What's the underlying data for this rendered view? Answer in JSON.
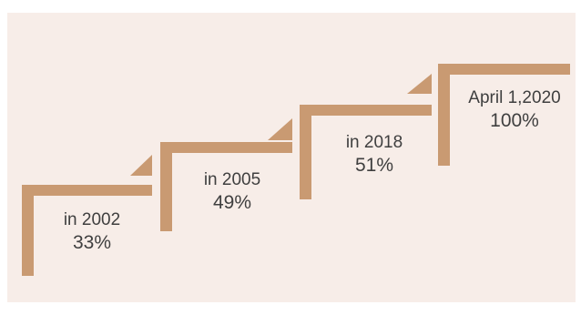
{
  "colors": {
    "background": "#f7ede8",
    "stair": "#c99a72",
    "text": "#3f3f3f"
  },
  "steps": [
    {
      "label": "in 2002",
      "value": "33%"
    },
    {
      "label": "in 2005",
      "value": "49%"
    },
    {
      "label": "in 2018",
      "value": "51%"
    },
    {
      "label": "April 1,2020",
      "value": "100%"
    }
  ]
}
